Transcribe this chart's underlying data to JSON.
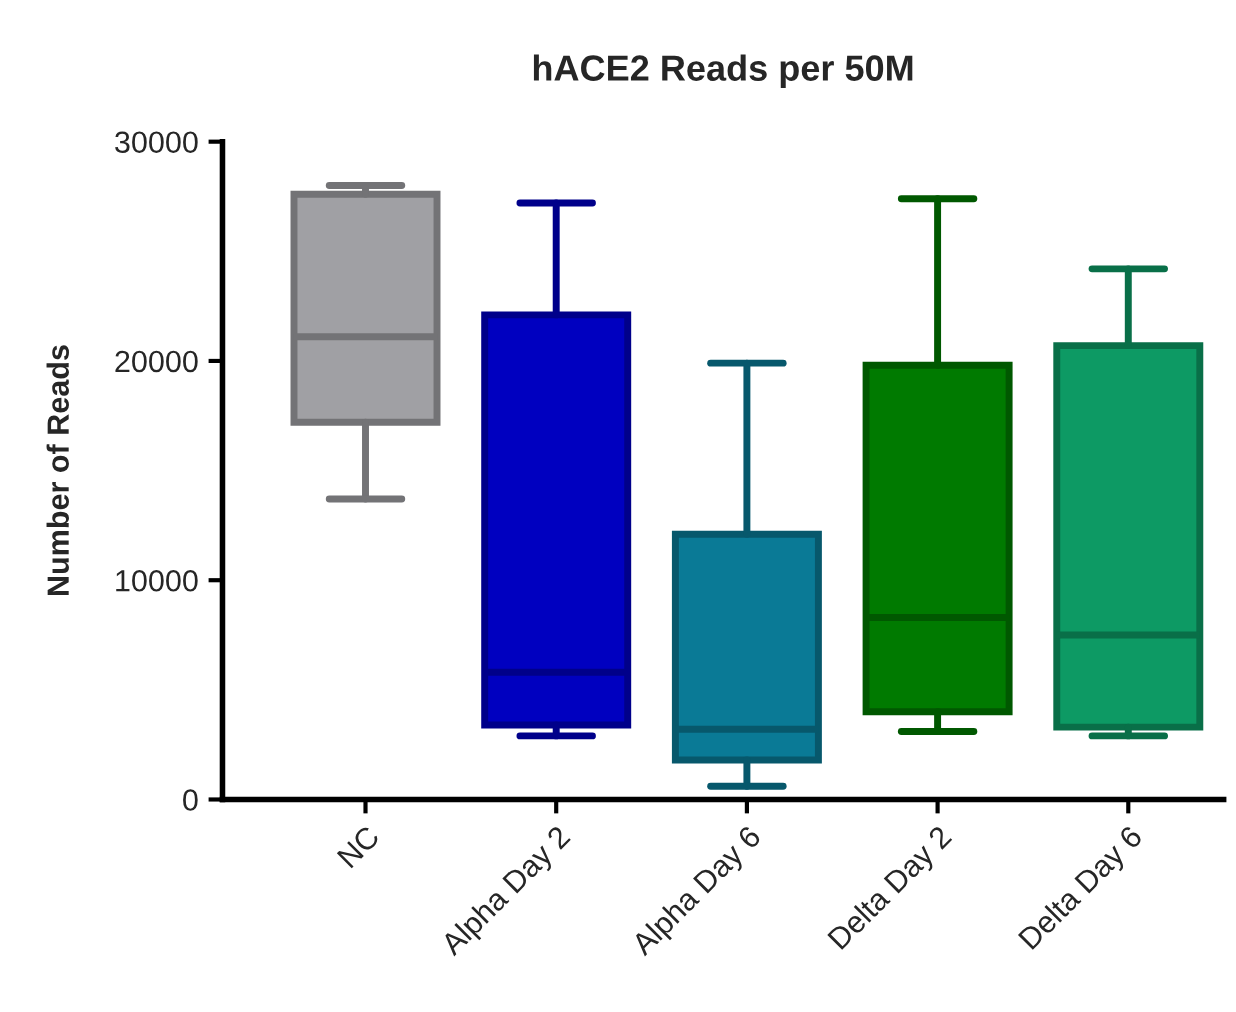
{
  "chart_data": {
    "type": "box",
    "title": "hACE2 Reads per 50M",
    "ylabel": "Number of Reads",
    "categories": [
      "NC",
      "Alpha Day 2",
      "Alpha Day 6",
      "Delta Day 2",
      "Delta Day 6"
    ],
    "boxes": [
      {
        "low": 13700,
        "q1": 17200,
        "median": 21100,
        "q3": 27600,
        "high": 28000
      },
      {
        "low": 2900,
        "q1": 3400,
        "median": 5800,
        "q3": 22100,
        "high": 27200
      },
      {
        "low": 600,
        "q1": 1800,
        "median": 3200,
        "q3": 12100,
        "high": 19900
      },
      {
        "low": 3100,
        "q1": 4000,
        "median": 8300,
        "q3": 19800,
        "high": 27400
      },
      {
        "low": 2900,
        "q1": 3300,
        "median": 7500,
        "q3": 20700,
        "high": 24200
      }
    ],
    "colors": [
      "#a0a0a4",
      "#0000c0",
      "#0a7a96",
      "#007a00",
      "#0d9a64"
    ],
    "ylim": [
      0,
      30000
    ],
    "yticks": [
      0,
      10000,
      20000,
      30000
    ],
    "grid": false,
    "legend": false
  }
}
